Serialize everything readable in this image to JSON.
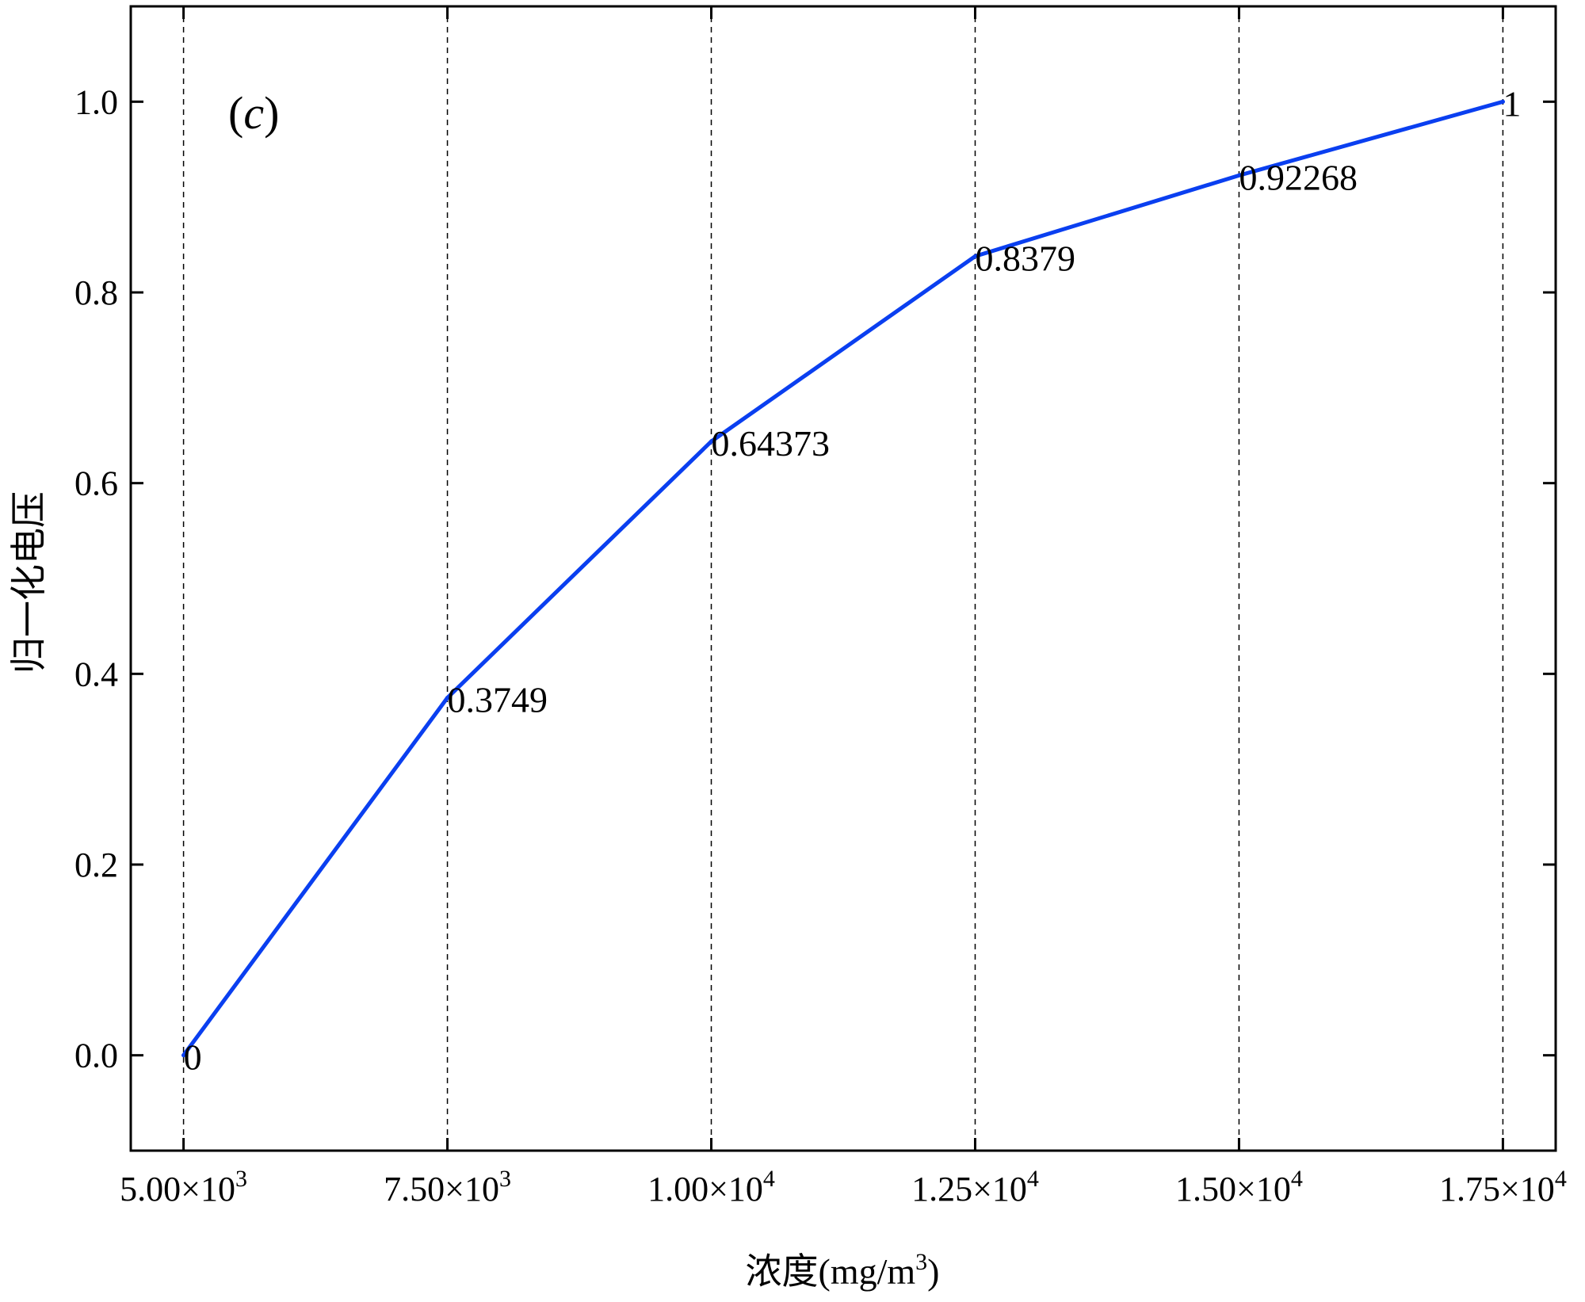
{
  "chart_data": {
    "type": "line",
    "panel_tag": {
      "open": "(",
      "letter": "c",
      "close": ")"
    },
    "xlabel": {
      "text": "浓度(mg/m",
      "sup": "3",
      "suffix": ")"
    },
    "ylabel": "归一化电压",
    "xlim": [
      4500,
      18000
    ],
    "ylim": [
      -0.1,
      1.1
    ],
    "x_ticks": [
      {
        "value": 5000,
        "mantissa": "5.00×10",
        "exp": "3"
      },
      {
        "value": 7500,
        "mantissa": "7.50×10",
        "exp": "3"
      },
      {
        "value": 10000,
        "mantissa": "1.00×10",
        "exp": "4"
      },
      {
        "value": 12500,
        "mantissa": "1.25×10",
        "exp": "4"
      },
      {
        "value": 15000,
        "mantissa": "1.50×10",
        "exp": "4"
      },
      {
        "value": 17500,
        "mantissa": "1.75×10",
        "exp": "4"
      }
    ],
    "y_ticks": [
      {
        "value": 0.0,
        "label": "0.0"
      },
      {
        "value": 0.2,
        "label": "0.2"
      },
      {
        "value": 0.4,
        "label": "0.4"
      },
      {
        "value": 0.6,
        "label": "0.6"
      },
      {
        "value": 0.8,
        "label": "0.8"
      },
      {
        "value": 1.0,
        "label": "1.0"
      }
    ],
    "grid": {
      "x": "dashed",
      "y": false
    },
    "series": [
      {
        "color": "#0a3ff0",
        "x": [
          5000,
          7500,
          10000,
          12500,
          15000,
          17500
        ],
        "y": [
          0,
          0.3749,
          0.64373,
          0.8379,
          0.92268,
          1
        ],
        "labels": [
          "0",
          "0.3749",
          "0.64373",
          "0.8379",
          "0.92268",
          "1"
        ]
      }
    ]
  }
}
